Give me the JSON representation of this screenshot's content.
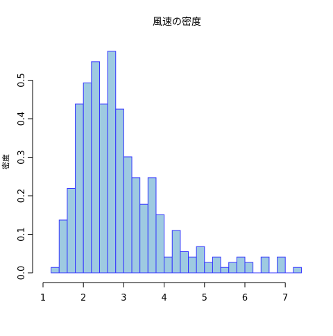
{
  "chart_data": {
    "type": "bar",
    "title": "風速の密度",
    "xlabel": "",
    "ylabel": "密度",
    "bin_width": 0.2,
    "bins": [
      {
        "x0": 1.2,
        "x1": 1.4,
        "density": 0.014
      },
      {
        "x0": 1.4,
        "x1": 1.6,
        "density": 0.137
      },
      {
        "x0": 1.6,
        "x1": 1.8,
        "density": 0.219
      },
      {
        "x0": 1.8,
        "x1": 2.0,
        "density": 0.438
      },
      {
        "x0": 2.0,
        "x1": 2.2,
        "density": 0.493
      },
      {
        "x0": 2.2,
        "x1": 2.4,
        "density": 0.548
      },
      {
        "x0": 2.4,
        "x1": 2.6,
        "density": 0.438
      },
      {
        "x0": 2.6,
        "x1": 2.8,
        "density": 0.575
      },
      {
        "x0": 2.8,
        "x1": 3.0,
        "density": 0.425
      },
      {
        "x0": 3.0,
        "x1": 3.2,
        "density": 0.301
      },
      {
        "x0": 3.2,
        "x1": 3.4,
        "density": 0.247
      },
      {
        "x0": 3.4,
        "x1": 3.6,
        "density": 0.178
      },
      {
        "x0": 3.6,
        "x1": 3.8,
        "density": 0.247
      },
      {
        "x0": 3.8,
        "x1": 4.0,
        "density": 0.151
      },
      {
        "x0": 4.0,
        "x1": 4.2,
        "density": 0.041
      },
      {
        "x0": 4.2,
        "x1": 4.4,
        "density": 0.11
      },
      {
        "x0": 4.4,
        "x1": 4.6,
        "density": 0.055
      },
      {
        "x0": 4.6,
        "x1": 4.8,
        "density": 0.041
      },
      {
        "x0": 4.8,
        "x1": 5.0,
        "density": 0.068
      },
      {
        "x0": 5.0,
        "x1": 5.2,
        "density": 0.027
      },
      {
        "x0": 5.2,
        "x1": 5.4,
        "density": 0.041
      },
      {
        "x0": 5.4,
        "x1": 5.6,
        "density": 0.014
      },
      {
        "x0": 5.6,
        "x1": 5.8,
        "density": 0.027
      },
      {
        "x0": 5.8,
        "x1": 6.0,
        "density": 0.041
      },
      {
        "x0": 6.0,
        "x1": 6.2,
        "density": 0.027
      },
      {
        "x0": 6.2,
        "x1": 6.4,
        "density": 0.0
      },
      {
        "x0": 6.4,
        "x1": 6.6,
        "density": 0.041
      },
      {
        "x0": 6.6,
        "x1": 6.8,
        "density": 0.0
      },
      {
        "x0": 6.8,
        "x1": 7.0,
        "density": 0.041
      },
      {
        "x0": 7.0,
        "x1": 7.2,
        "density": 0.0
      },
      {
        "x0": 7.2,
        "x1": 7.4,
        "density": 0.014
      }
    ],
    "xlim": [
      1,
      7.4
    ],
    "ylim": [
      0,
      0.575
    ],
    "xticks": [
      1,
      2,
      3,
      4,
      5,
      6,
      7
    ],
    "xtick_labels": [
      "1",
      "2",
      "3",
      "4",
      "5",
      "6",
      "7"
    ],
    "yticks": [
      0.0,
      0.1,
      0.2,
      0.3,
      0.4,
      0.5
    ],
    "ytick_labels": [
      "0.0",
      "0.1",
      "0.2",
      "0.3",
      "0.4",
      "0.5"
    ],
    "grid": false,
    "bar_fill_color": "#9ecae1",
    "bar_edge_color": "#3333ff"
  }
}
